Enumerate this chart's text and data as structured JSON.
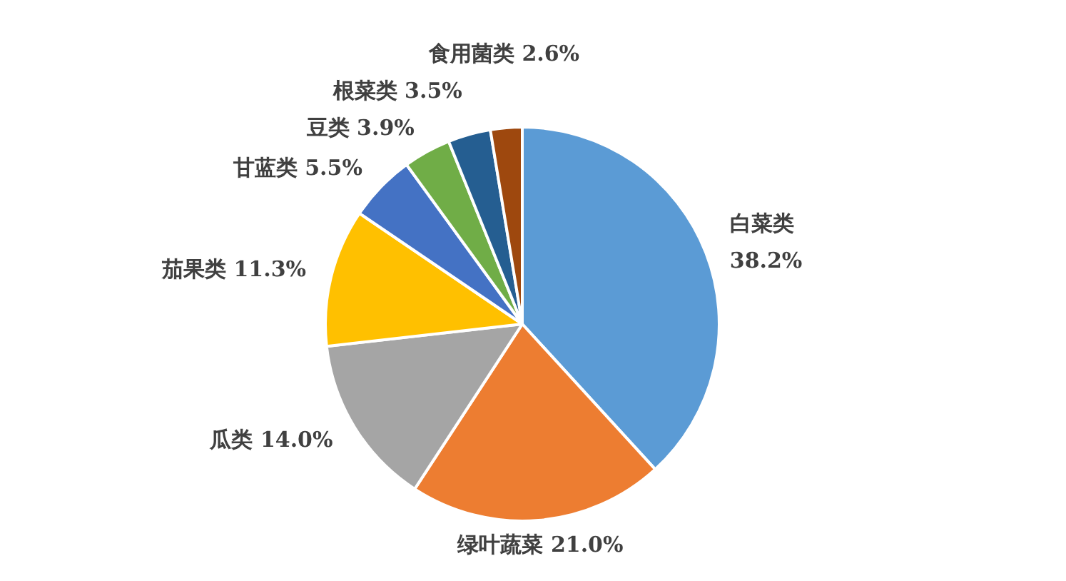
{
  "chart_data": {
    "type": "pie",
    "categories": [
      "白菜类",
      "绿叶蔬菜",
      "瓜类",
      "茄果类",
      "甘蓝类",
      "豆类",
      "根菜类",
      "食用菌类"
    ],
    "values": [
      38.2,
      21.0,
      14.0,
      11.3,
      5.5,
      3.9,
      3.5,
      2.6
    ],
    "value_labels": [
      "38.2%",
      "21.0%",
      "14.0%",
      "11.3%",
      "5.5%",
      "3.9%",
      "3.5%",
      "2.6%"
    ],
    "colors": [
      "#5b9bd5",
      "#ed7d31",
      "#a5a5a5",
      "#ffc000",
      "#4472c4",
      "#70ad47",
      "#255e91",
      "#9e480e"
    ],
    "legend": false
  }
}
